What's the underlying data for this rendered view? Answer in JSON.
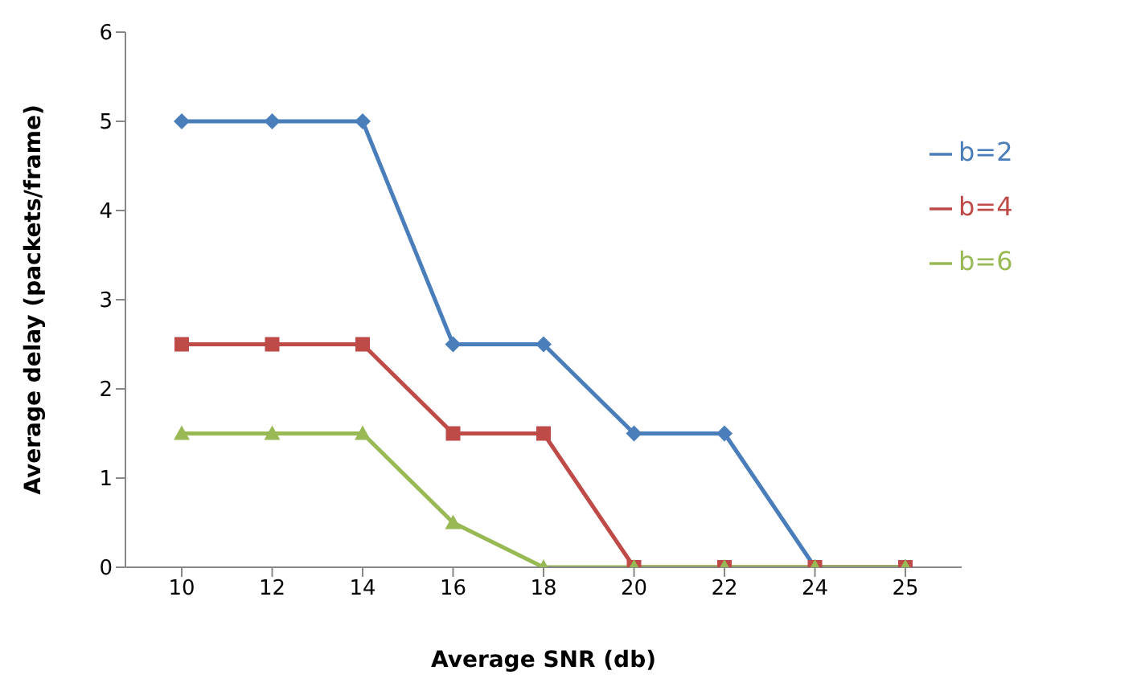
{
  "chart_data": {
    "type": "line",
    "xlabel": "Average SNR (db)",
    "ylabel": "Average delay (packets/frame)",
    "categories": [
      "10",
      "12",
      "14",
      "16",
      "18",
      "20",
      "22",
      "24",
      "25"
    ],
    "series": [
      {
        "name": "b=2",
        "color": "#4a7ebb",
        "marker": "diamond",
        "values": [
          5,
          5,
          5,
          2.5,
          2.5,
          1.5,
          1.5,
          0,
          0
        ]
      },
      {
        "name": "b=4",
        "color": "#be4b48",
        "marker": "square",
        "values": [
          2.5,
          2.5,
          2.5,
          1.5,
          1.5,
          0,
          0,
          0,
          0
        ]
      },
      {
        "name": "b=6",
        "color": "#98b954",
        "marker": "triangle",
        "values": [
          1.5,
          1.5,
          1.5,
          0.5,
          0,
          0,
          0,
          0,
          0
        ]
      }
    ],
    "ylim": [
      0,
      6
    ],
    "yticks": [
      0,
      1,
      2,
      3,
      4,
      5,
      6
    ],
    "grid": false,
    "legend": "top right",
    "line_style": "solid"
  }
}
